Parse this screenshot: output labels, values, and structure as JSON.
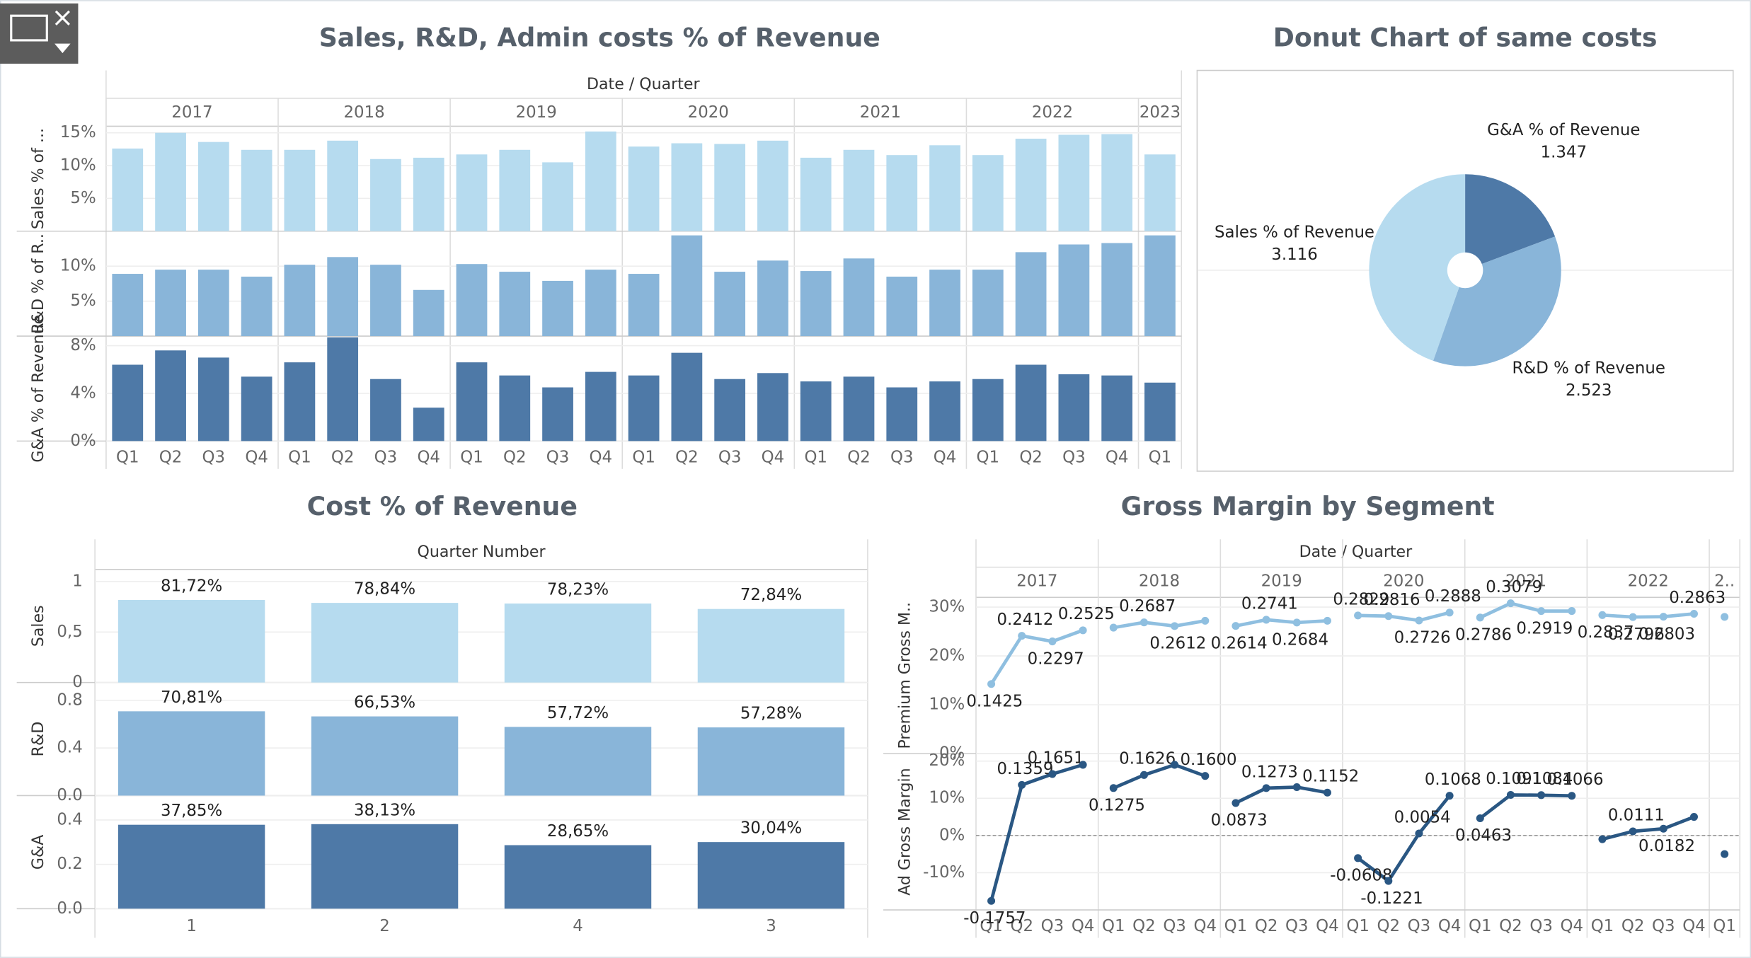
{
  "chart_data": [
    {
      "type": "bar",
      "title": "Sales, R&D, Admin costs % of Revenue",
      "x_title": "Date / Quarter",
      "groups": [
        {
          "name": "2017",
          "categories": [
            "Q1",
            "Q2",
            "Q3",
            "Q4"
          ]
        },
        {
          "name": "2018",
          "categories": [
            "Q1",
            "Q2",
            "Q3",
            "Q4"
          ]
        },
        {
          "name": "2019",
          "categories": [
            "Q1",
            "Q2",
            "Q3",
            "Q4"
          ]
        },
        {
          "name": "2020",
          "categories": [
            "Q1",
            "Q2",
            "Q3",
            "Q4"
          ]
        },
        {
          "name": "2021",
          "categories": [
            "Q1",
            "Q2",
            "Q3",
            "Q4"
          ]
        },
        {
          "name": "2022",
          "categories": [
            "Q1",
            "Q2",
            "Q3",
            "Q4"
          ]
        },
        {
          "name": "2023",
          "categories": [
            "Q1"
          ]
        }
      ],
      "series": [
        {
          "name": "Sales % of ...",
          "color": "#b6dbef",
          "ylim": [
            0,
            16
          ],
          "yticks": [
            {
              "value": 5,
              "label": "5%"
            },
            {
              "value": 10,
              "label": "10%"
            },
            {
              "value": 15,
              "label": "15%"
            }
          ],
          "values": [
            12.6,
            15.0,
            13.6,
            12.4,
            12.4,
            13.8,
            11.0,
            11.2,
            11.7,
            12.4,
            10.5,
            15.2,
            12.9,
            13.4,
            13.3,
            13.8,
            11.2,
            12.4,
            11.6,
            13.1,
            11.6,
            14.1,
            14.7,
            14.8,
            11.7
          ]
        },
        {
          "name": "R&D % of R..",
          "color": "#89b5d9",
          "ylim": [
            0,
            15
          ],
          "yticks": [
            {
              "value": 5,
              "label": "5%"
            },
            {
              "value": 10,
              "label": "10%"
            }
          ],
          "values": [
            8.9,
            9.5,
            9.5,
            8.5,
            10.2,
            11.3,
            10.2,
            6.6,
            10.3,
            9.2,
            7.9,
            9.5,
            8.9,
            14.4,
            9.2,
            10.8,
            9.3,
            11.1,
            8.5,
            9.5,
            9.5,
            12.0,
            13.1,
            13.3,
            14.4
          ]
        },
        {
          "name": "G&A % of Revenue",
          "color": "#4e79a7",
          "ylim": [
            0,
            8.8
          ],
          "yticks": [
            {
              "value": 0,
              "label": "0%"
            },
            {
              "value": 4,
              "label": "4%"
            },
            {
              "value": 8,
              "label": "8%"
            }
          ],
          "values": [
            6.4,
            7.6,
            7.0,
            5.4,
            6.6,
            8.7,
            5.2,
            2.8,
            6.6,
            5.5,
            4.5,
            5.8,
            5.5,
            7.4,
            5.2,
            5.7,
            5.0,
            5.4,
            4.5,
            5.0,
            5.2,
            6.4,
            5.6,
            5.5,
            4.9
          ]
        }
      ]
    },
    {
      "type": "pie",
      "title": "Donut Chart of same costs",
      "categories": [
        "G&A % of Revenue",
        "R&D % of Revenue",
        "Sales % of Revenue"
      ],
      "values": [
        1.347,
        2.523,
        3.116
      ],
      "colors": [
        "#4e79a7",
        "#89b5d9",
        "#b6dbef"
      ]
    },
    {
      "type": "bar",
      "title": "Cost % of Revenue",
      "x_title": "Quarter Number",
      "categories": [
        "1",
        "2",
        "4",
        "3"
      ],
      "series": [
        {
          "name": "Sales",
          "color": "#b6dbef",
          "ylim": [
            0,
            1.12
          ],
          "yticks": [
            0,
            {
              "value": 0.5,
              "label": "0,5"
            },
            1
          ],
          "values": [
            0.8172,
            0.7884,
            0.7823,
            0.7284
          ],
          "value_labels": [
            "81,72%",
            "78,84%",
            "78,23%",
            "72,84%"
          ]
        },
        {
          "name": "R&D",
          "color": "#89b5d9",
          "ylim": [
            0,
            0.95
          ],
          "yticks": [
            {
              "value": 0,
              "label": "0.0"
            },
            0.4,
            0.8
          ],
          "values": [
            0.7081,
            0.6653,
            0.5772,
            0.5728
          ],
          "value_labels": [
            "70,81%",
            "66,53%",
            "57,72%",
            "57,28%"
          ]
        },
        {
          "name": "G&A",
          "color": "#4e79a7",
          "ylim": [
            0,
            0.51
          ],
          "yticks": [
            {
              "value": 0,
              "label": "0.0"
            },
            0.2,
            0.4
          ],
          "values": [
            0.3785,
            0.3813,
            0.2865,
            0.3004
          ],
          "value_labels": [
            "37,85%",
            "38,13%",
            "28,65%",
            "30,04%"
          ]
        }
      ]
    },
    {
      "type": "line",
      "title": "Gross Margin by Segment",
      "x_title": "Date / Quarter",
      "groups": [
        {
          "name": "2017",
          "categories": [
            "Q1",
            "Q2",
            "Q3",
            "Q4"
          ]
        },
        {
          "name": "2018",
          "categories": [
            "Q1",
            "Q2",
            "Q3",
            "Q4"
          ]
        },
        {
          "name": "2019",
          "categories": [
            "Q1",
            "Q2",
            "Q3",
            "Q4"
          ]
        },
        {
          "name": "2020",
          "categories": [
            "Q1",
            "Q2",
            "Q3",
            "Q4"
          ]
        },
        {
          "name": "2021",
          "categories": [
            "Q1",
            "Q2",
            "Q3",
            "Q4"
          ]
        },
        {
          "name": "2022",
          "categories": [
            "Q1",
            "Q2",
            "Q3",
            "Q4"
          ]
        },
        {
          "name": "2..",
          "categories": [
            "Q1"
          ]
        }
      ],
      "series": [
        {
          "name": "Premium Gross M..",
          "color": "#8fbfe0",
          "ylim": [
            0,
            0.32
          ],
          "yticks": [
            {
              "value": 0,
              "label": "0%"
            },
            {
              "value": 0.1,
              "label": "10%"
            },
            {
              "value": 0.2,
              "label": "20%"
            },
            {
              "value": 0.3,
              "label": "30%"
            }
          ],
          "values": [
            0.1425,
            0.2412,
            0.2297,
            0.2525,
            0.258,
            0.2687,
            0.2612,
            0.272,
            0.2614,
            0.2741,
            0.2684,
            0.272,
            0.2829,
            0.2816,
            0.2726,
            0.2888,
            0.2786,
            0.3079,
            0.2919,
            0.292,
            0.2837,
            0.2796,
            0.2803,
            0.2863,
            0.28
          ],
          "value_labels": [
            "0.1425",
            "0.2412",
            "0.2297",
            "0.2525",
            null,
            "0.2687",
            "0.2612",
            null,
            "0.2614",
            "0.2741",
            "0.2684",
            null,
            "0.2829",
            "0.2816",
            "0.2726",
            "0.2888",
            "0.2786",
            "0.3079",
            "0.2919",
            null,
            "0.2837",
            "0.2796",
            "0.2803",
            "0.2863",
            null
          ]
        },
        {
          "name": "Ad Gross Margin",
          "color": "#2a5783",
          "ylim": [
            -0.2,
            0.22
          ],
          "yticks": [
            {
              "value": -0.1,
              "label": "-10%"
            },
            {
              "value": 0,
              "label": "0%"
            },
            {
              "value": 0.1,
              "label": "10%"
            },
            {
              "value": 0.2,
              "label": "20%"
            }
          ],
          "values": [
            -0.1757,
            0.1359,
            0.1651,
            0.19,
            0.1275,
            0.1626,
            0.19,
            0.16,
            0.0873,
            0.1273,
            0.13,
            0.1152,
            -0.0608,
            -0.1221,
            0.0054,
            0.1068,
            0.0463,
            0.1091,
            0.1084,
            0.1066,
            -0.01,
            0.0111,
            0.0182,
            0.05,
            -0.05
          ],
          "value_labels": [
            "-0.1757",
            "0.1359",
            "0.1651",
            null,
            "0.1275",
            "0.1626",
            null,
            "0.1600",
            "0.0873",
            "0.1273",
            null,
            "0.1152",
            "-0.0608",
            "-0.1221",
            "0.0054",
            "0.1068",
            "0.0463",
            "0.1091",
            "0.1084",
            "0.1066",
            null,
            "0.0111",
            "0.0182",
            null,
            null
          ]
        }
      ]
    }
  ]
}
